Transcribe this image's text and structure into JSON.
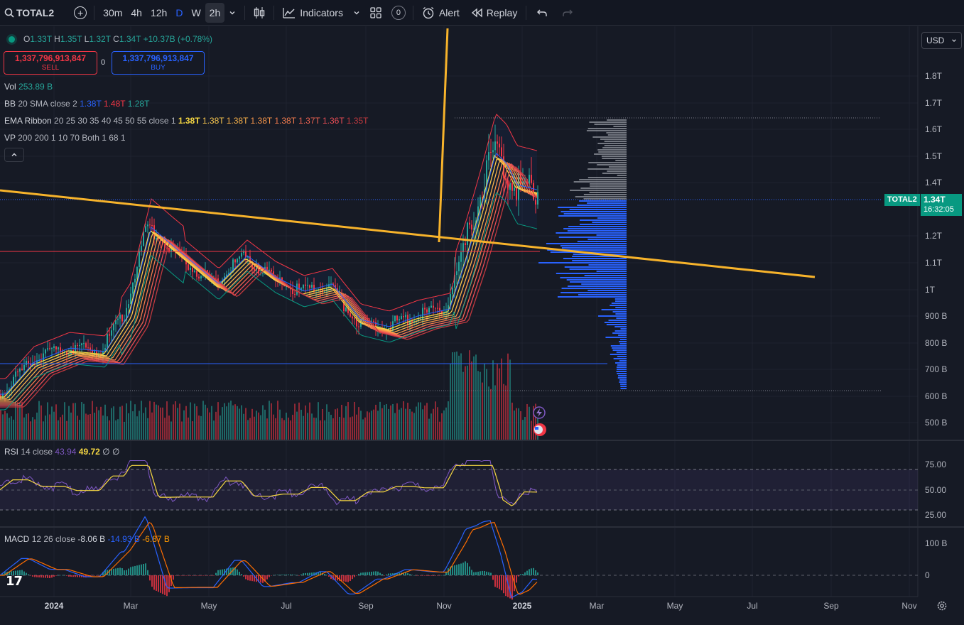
{
  "toolbar": {
    "symbol": "TOTAL2",
    "add_icon": "plus-circle-icon",
    "timeframes": [
      "30m",
      "4h",
      "12h",
      "D",
      "W",
      "2h"
    ],
    "active_timeframe": "2h",
    "indicators_label": "Indicators",
    "layouts_count": "0",
    "alert_label": "Alert",
    "replay_label": "Replay"
  },
  "ohlc": {
    "o_label": "O",
    "o": "1.33T",
    "h_label": "H",
    "h": "1.35T",
    "l_label": "L",
    "l": "1.32T",
    "c_label": "C",
    "c": "1.34T",
    "change": "+10.37B (+0.78%)"
  },
  "trade": {
    "sell_price": "1,337,796,913,847",
    "sell_label": "SELL",
    "spread": "0",
    "buy_price": "1,337,796,913,847",
    "buy_label": "BUY"
  },
  "indicators": {
    "vol_name": "Vol",
    "vol_value": "253.89 B",
    "bb_name": "BB",
    "bb_params": "20 SMA close 2",
    "bb_v1": "1.38T",
    "bb_v2": "1.48T",
    "bb_v3": "1.28T",
    "ema_name": "EMA Ribbon",
    "ema_params": "20 25 30 35 40 45 50 55 close 1",
    "ema_values": [
      "1.38T",
      "1.38T",
      "1.38T",
      "1.38T",
      "1.38T",
      "1.37T",
      "1.36T",
      "1.35T"
    ],
    "vp_name": "VP",
    "vp_params": "200 200 1 10 70 Both 1 68 1"
  },
  "currency": "USD",
  "price_axis": [
    "1.8T",
    "1.7T",
    "1.6T",
    "1.5T",
    "1.4T",
    "1.2T",
    "1.1T",
    "1T",
    "900 B",
    "800 B",
    "700 B",
    "600 B",
    "500 B"
  ],
  "price_tag": {
    "symbol": "TOTAL2",
    "price": "1.34T",
    "countdown": "16:32:05"
  },
  "rsi": {
    "name": "RSI",
    "params": "14 close",
    "v1": "43.94",
    "v2": "49.72",
    "v3": "∅",
    "v4": "∅",
    "axis": [
      "75.00",
      "50.00",
      "25.00"
    ]
  },
  "macd": {
    "name": "MACD",
    "params": "12 26 close",
    "v1": "-8.06 B",
    "v2": "-14.93 B",
    "v3": "-6.87 B",
    "axis": [
      "100 B",
      "0"
    ]
  },
  "time_axis": [
    "2024",
    "Mar",
    "May",
    "Jul",
    "Sep",
    "Nov",
    "2025",
    "Mar",
    "May",
    "Jul",
    "Sep",
    "Nov"
  ],
  "colors": {
    "background": "#161a25",
    "up": "#26a69a",
    "down": "#f23645",
    "trendline": "#f7b32b",
    "bb_upper": "#f23645",
    "bb_basis": "#2962ff",
    "bb_lower": "#089981",
    "volume_profile": "#2962ff",
    "rsi": "#7e57c2",
    "macd": "#2962ff",
    "signal": "#ff6d00"
  }
}
